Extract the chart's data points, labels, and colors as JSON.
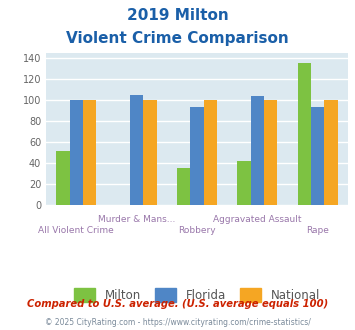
{
  "title_line1": "2019 Milton",
  "title_line2": "Violent Crime Comparison",
  "categories_top": [
    "",
    "Murder & Mans...",
    "",
    "Aggravated Assault",
    ""
  ],
  "categories_bot": [
    "All Violent Crime",
    "",
    "Robbery",
    "",
    "Rape"
  ],
  "milton_values": [
    51,
    0,
    35,
    42,
    135
  ],
  "florida_values": [
    100,
    105,
    93,
    104,
    93
  ],
  "national_values": [
    100,
    100,
    100,
    100,
    100
  ],
  "milton_color": "#7dc242",
  "florida_color": "#4f86c6",
  "national_color": "#f5a623",
  "ylim": [
    0,
    145
  ],
  "yticks": [
    0,
    20,
    40,
    60,
    80,
    100,
    120,
    140
  ],
  "legend_labels": [
    "Milton",
    "Florida",
    "National"
  ],
  "footnote1": "Compared to U.S. average. (U.S. average equals 100)",
  "footnote2": "© 2025 CityRating.com - https://www.cityrating.com/crime-statistics/",
  "title_color": "#1a5fa8",
  "footnote1_color": "#cc2200",
  "footnote2_color": "#7a8a9a",
  "fig_bg_color": "#ffffff",
  "plot_bg_color": "#dce9f0",
  "grid_color": "#ffffff",
  "label_color": "#9977aa",
  "bar_width": 0.22
}
